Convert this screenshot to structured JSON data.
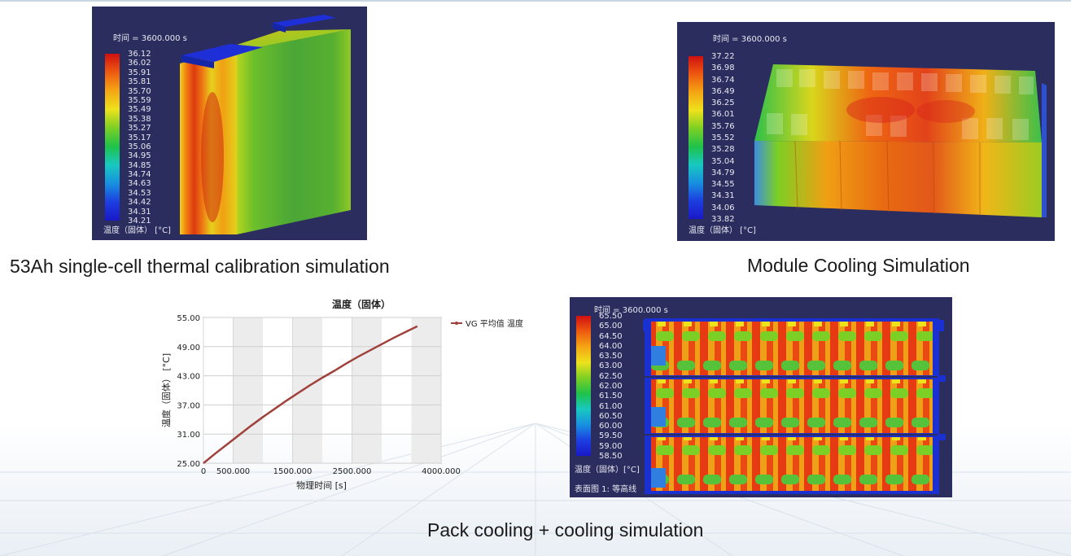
{
  "panels": {
    "cell": {
      "time_label": "时间 = 3600.000 s",
      "unit_label": "温度（固体） [°C]",
      "legend_ticks": [
        "36.12",
        "36.02",
        "35.91",
        "35.81",
        "35.70",
        "35.59",
        "35.49",
        "35.38",
        "35.27",
        "35.17",
        "35.06",
        "34.95",
        "34.85",
        "34.74",
        "34.63",
        "34.53",
        "34.42",
        "34.31",
        "34.21"
      ],
      "caption": "53Ah single-cell thermal calibration simulation"
    },
    "module": {
      "time_label": "时间 = 3600.000 s",
      "unit_label": "温度（固体） [°C]",
      "legend_ticks": [
        "37.22",
        "36.98",
        "36.74",
        "36.49",
        "36.25",
        "36.01",
        "35.76",
        "35.52",
        "35.28",
        "35.04",
        "34.79",
        "34.55",
        "34.31",
        "34.06",
        "33.82"
      ],
      "caption": "Module Cooling Simulation"
    },
    "pack": {
      "time_label": "时间 = 3600.000 s",
      "unit_label": "温度（固体）[°C]",
      "surface_label": "表面图 1: 等高线",
      "legend_ticks": [
        "65.50",
        "65.00",
        "64.50",
        "64.00",
        "63.50",
        "63.00",
        "62.50",
        "62.00",
        "61.50",
        "61.00",
        "60.50",
        "60.00",
        "59.50",
        "59.00",
        "58.50"
      ],
      "caption": "Pack cooling + cooling simulation"
    }
  },
  "chart_data": {
    "type": "line",
    "title": "温度（固体）",
    "xlabel": "物理时间 [s]",
    "ylabel": "温度（固体） [°C]",
    "xlim": [
      0,
      4000
    ],
    "ylim": [
      25,
      55
    ],
    "xticks": [
      "0",
      "500.000",
      "1500.000",
      "2500.000",
      "4000.000"
    ],
    "xtick_values": [
      0,
      500,
      1500,
      2500,
      4000
    ],
    "yticks": [
      "55.00",
      "49.00",
      "43.00",
      "37.00",
      "31.00",
      "25.00"
    ],
    "ytick_values": [
      55,
      49,
      43,
      37,
      31,
      25
    ],
    "grid": true,
    "legend_position": "top-right",
    "series": [
      {
        "name": "VG 平均值 温度",
        "color": "#a0413c",
        "x": [
          0,
          200,
          400,
          600,
          800,
          1000,
          1200,
          1400,
          1600,
          1800,
          2000,
          2200,
          2400,
          2600,
          2800,
          3000,
          3200,
          3400,
          3600
        ],
        "y": [
          25.0,
          27.0,
          28.9,
          30.8,
          32.7,
          34.5,
          36.2,
          37.9,
          39.5,
          41.1,
          42.6,
          44.0,
          45.5,
          46.9,
          48.2,
          49.5,
          50.8,
          52.0,
          53.2
        ]
      }
    ]
  }
}
